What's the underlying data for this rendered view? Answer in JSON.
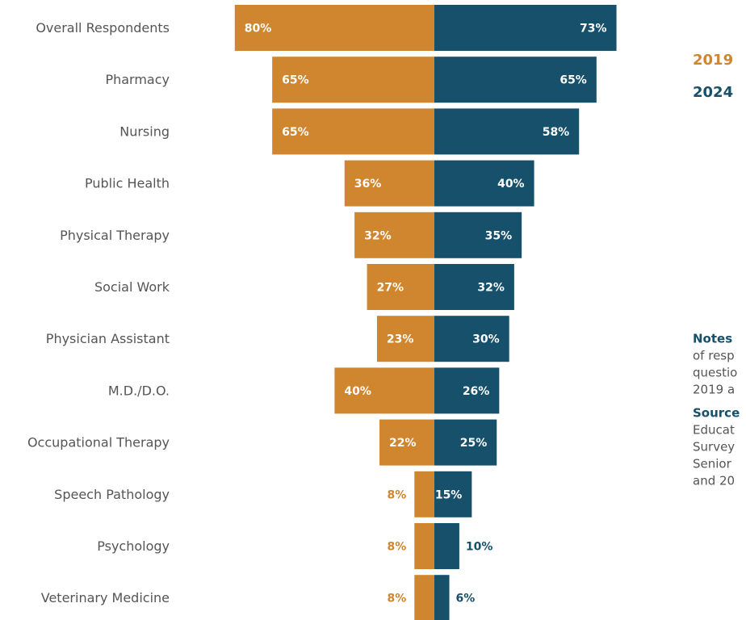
{
  "chart_data": {
    "type": "butterfly-bar",
    "categories": [
      "Overall Respondents",
      "Pharmacy",
      "Nursing",
      "Public Health",
      "Physical Therapy",
      "Social Work",
      "Physician Assistant",
      "M.D./D.O.",
      "Occupational Therapy",
      "Speech Pathology",
      "Psychology",
      "Veterinary Medicine"
    ],
    "series": [
      {
        "name": "2019",
        "color": "#d0862e",
        "values": [
          80,
          65,
          65,
          36,
          32,
          27,
          23,
          40,
          22,
          8,
          8,
          8
        ],
        "value_labels": [
          "80%",
          "65%",
          "65%",
          "36%",
          "32%",
          "27%",
          "23%",
          "40%",
          "22%",
          "8%",
          "8%",
          "8%"
        ]
      },
      {
        "name": "2024",
        "color": "#16506b",
        "values": [
          73,
          65,
          58,
          40,
          35,
          32,
          30,
          26,
          25,
          15,
          10,
          6
        ],
        "value_labels": [
          "73%",
          "65%",
          "58%",
          "40%",
          "35%",
          "32%",
          "30%",
          "26%",
          "25%",
          "15%",
          "10%",
          "6%"
        ]
      }
    ],
    "notes": {
      "title": "Notes",
      "lines": [
        "of resp",
        "questio",
        "2019 a"
      ]
    },
    "source": {
      "title": "Source",
      "lines": [
        "Educat",
        "Survey",
        "Senior",
        "and 20"
      ]
    }
  }
}
